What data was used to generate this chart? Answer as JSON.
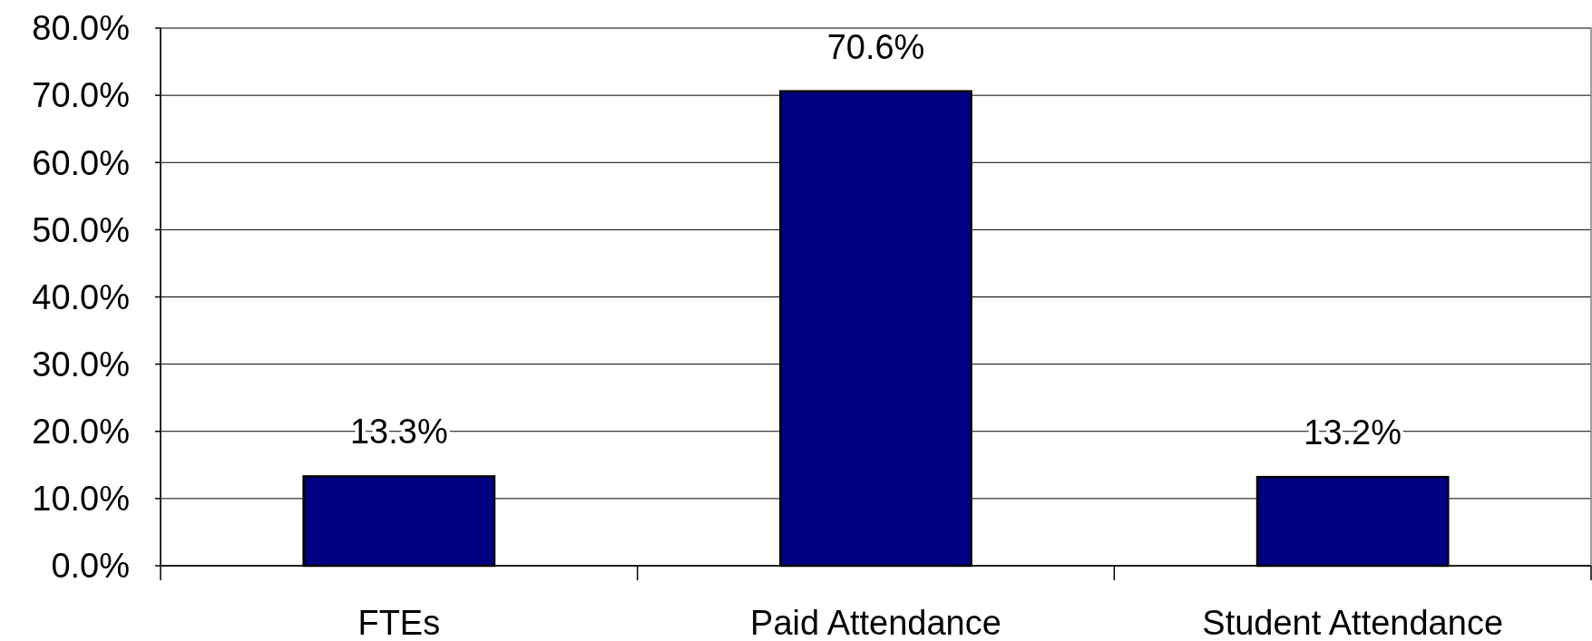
{
  "chart_data": {
    "type": "bar",
    "categories": [
      "FTEs",
      "Paid Attendance",
      "Student Attendance"
    ],
    "values": [
      13.3,
      70.6,
      13.2
    ],
    "color": "#000080",
    "value_labels": [
      "13.3%",
      "70.6%",
      "13.2%"
    ],
    "ylim": [
      0,
      80
    ],
    "yticks": [
      {
        "value": 0,
        "label": "0.0%"
      },
      {
        "value": 10,
        "label": "10.0%"
      },
      {
        "value": 20,
        "label": "20.0%"
      },
      {
        "value": 30,
        "label": "30.0%"
      },
      {
        "value": 40,
        "label": "40.0%"
      },
      {
        "value": 50,
        "label": "50.0%"
      },
      {
        "value": 60,
        "label": "60.0%"
      },
      {
        "value": 70,
        "label": "70.0%"
      },
      {
        "value": 80,
        "label": "80.0%"
      }
    ],
    "grid": "y"
  }
}
